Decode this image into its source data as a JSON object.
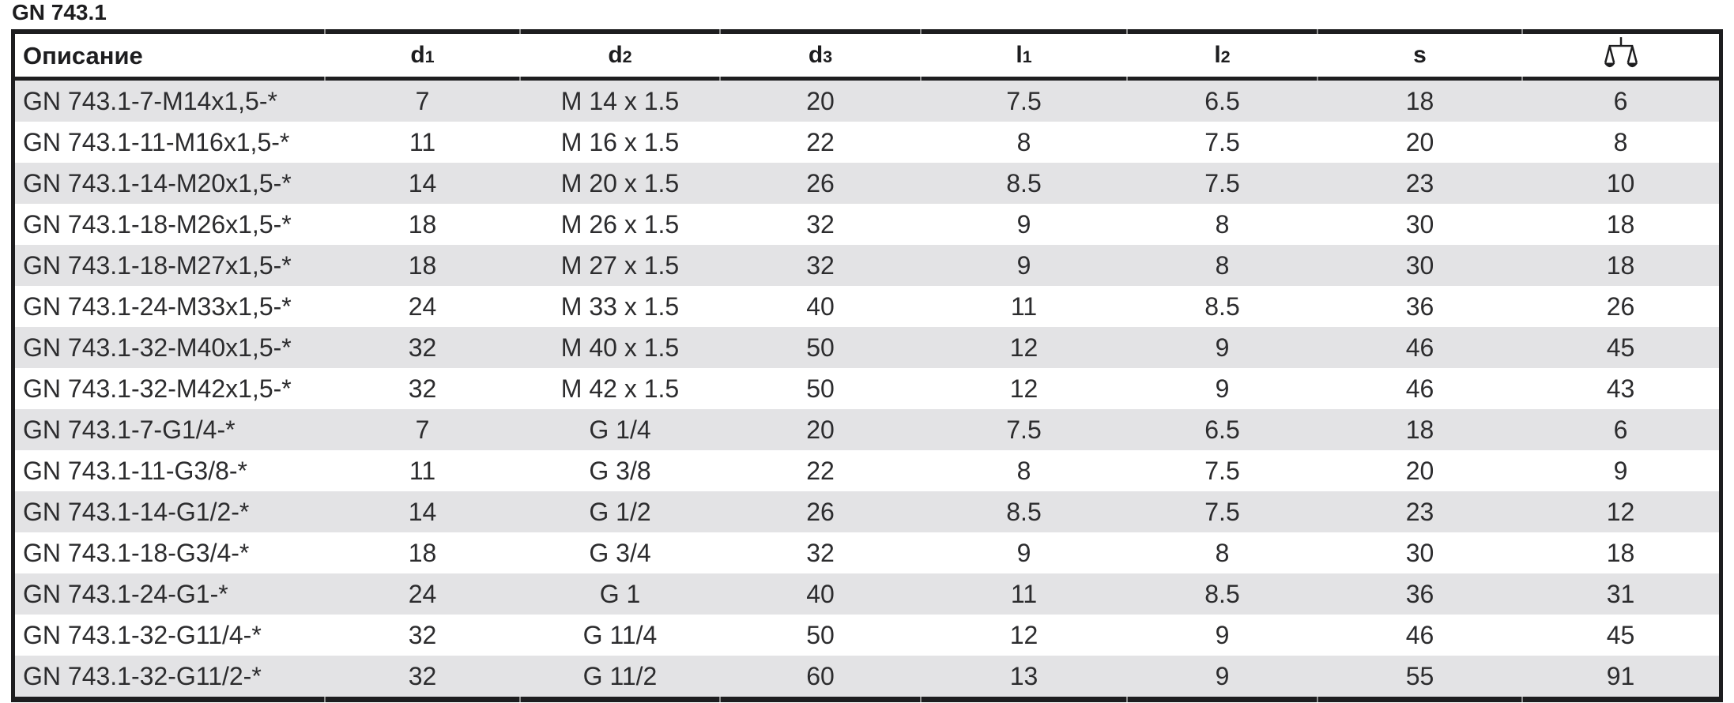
{
  "page": {
    "title": "GN 743.1"
  },
  "colors": {
    "row_stripe": "#e3e3e5",
    "rule": "#1d1d1f",
    "notch": "#8e8e8e",
    "text": "#2c2c2e"
  },
  "table": {
    "columns": [
      {
        "label": "Описание",
        "sub": ""
      },
      {
        "label": "d",
        "sub": "1"
      },
      {
        "label": "d",
        "sub": "2"
      },
      {
        "label": "d",
        "sub": "3"
      },
      {
        "label": "l",
        "sub": "1"
      },
      {
        "label": "l",
        "sub": "2"
      },
      {
        "label": "s",
        "sub": ""
      },
      {
        "label": "",
        "sub": "",
        "icon": "weight-scale-icon"
      }
    ],
    "rows": [
      [
        "GN 743.1-7-M14x1,5-*",
        "7",
        "M 14 x 1.5",
        "20",
        "7.5",
        "6.5",
        "18",
        "6"
      ],
      [
        "GN 743.1-11-M16x1,5-*",
        "11",
        "M 16 x 1.5",
        "22",
        "8",
        "7.5",
        "20",
        "8"
      ],
      [
        "GN 743.1-14-M20x1,5-*",
        "14",
        "M 20 x 1.5",
        "26",
        "8.5",
        "7.5",
        "23",
        "10"
      ],
      [
        "GN 743.1-18-M26x1,5-*",
        "18",
        "M 26 x 1.5",
        "32",
        "9",
        "8",
        "30",
        "18"
      ],
      [
        "GN 743.1-18-M27x1,5-*",
        "18",
        "M 27 x 1.5",
        "32",
        "9",
        "8",
        "30",
        "18"
      ],
      [
        "GN 743.1-24-M33x1,5-*",
        "24",
        "M 33 x 1.5",
        "40",
        "11",
        "8.5",
        "36",
        "26"
      ],
      [
        "GN 743.1-32-M40x1,5-*",
        "32",
        "M 40 x 1.5",
        "50",
        "12",
        "9",
        "46",
        "45"
      ],
      [
        "GN 743.1-32-M42x1,5-*",
        "32",
        "M 42 x 1.5",
        "50",
        "12",
        "9",
        "46",
        "43"
      ],
      [
        "GN 743.1-7-G1/4-*",
        "7",
        "G 1/4",
        "20",
        "7.5",
        "6.5",
        "18",
        "6"
      ],
      [
        "GN 743.1-11-G3/8-*",
        "11",
        "G 3/8",
        "22",
        "8",
        "7.5",
        "20",
        "9"
      ],
      [
        "GN 743.1-14-G1/2-*",
        "14",
        "G 1/2",
        "26",
        "8.5",
        "7.5",
        "23",
        "12"
      ],
      [
        "GN 743.1-18-G3/4-*",
        "18",
        "G 3/4",
        "32",
        "9",
        "8",
        "30",
        "18"
      ],
      [
        "GN 743.1-24-G1-*",
        "24",
        "G 1",
        "40",
        "11",
        "8.5",
        "36",
        "31"
      ],
      [
        "GN 743.1-32-G11/4-*",
        "32",
        "G 11/4",
        "50",
        "12",
        "9",
        "46",
        "45"
      ],
      [
        "GN 743.1-32-G11/2-*",
        "32",
        "G 11/2",
        "60",
        "13",
        "9",
        "55",
        "91"
      ]
    ]
  }
}
